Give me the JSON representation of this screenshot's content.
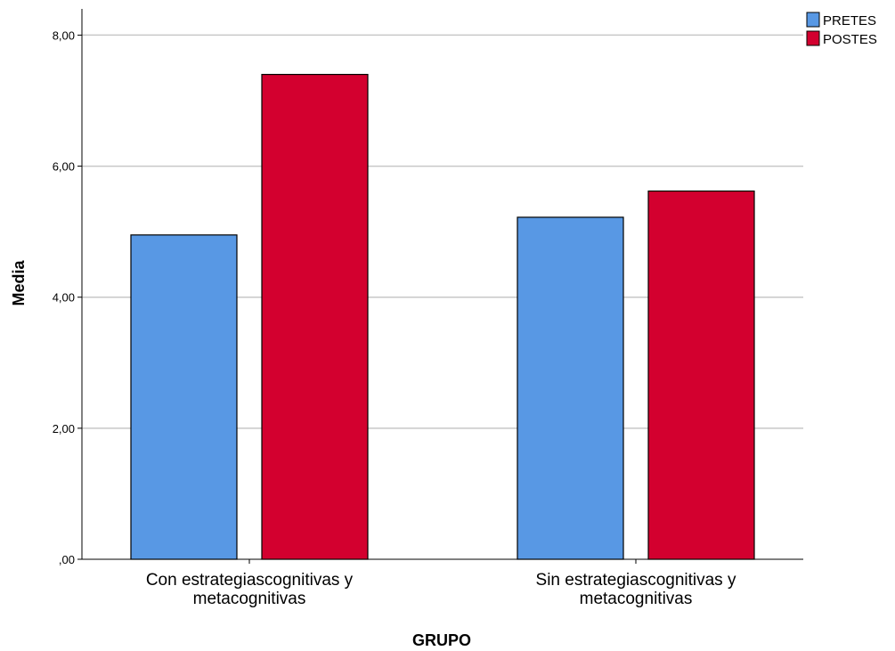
{
  "chart_data": {
    "type": "bar",
    "title": "",
    "xlabel": "GRUPO",
    "ylabel": "Media",
    "categories": [
      [
        "Con estrategiascognitivas y",
        "metacognitivas"
      ],
      [
        "Sin estrategiascognitivas y",
        "metacognitivas"
      ]
    ],
    "series": [
      {
        "name": "PRETES",
        "color": "#5898e4",
        "values": [
          4.95,
          5.22
        ]
      },
      {
        "name": "POSTES",
        "color": "#d3002f",
        "values": [
          7.4,
          5.62
        ]
      }
    ],
    "ylim": [
      0,
      8.4
    ],
    "yticks": [
      0,
      2,
      4,
      6,
      8
    ],
    "ytick_labels": [
      ",00",
      "2,00",
      "4,00",
      "6,00",
      "8,00"
    ],
    "grid": true,
    "legend_position": "top-right"
  }
}
